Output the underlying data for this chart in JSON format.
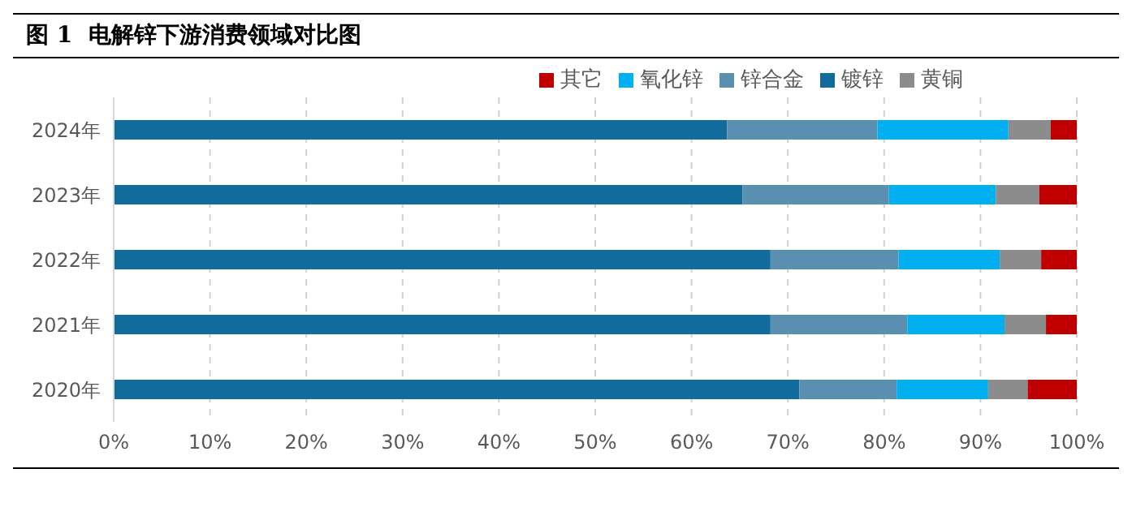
{
  "chart_data": {
    "type": "bar",
    "orientation": "horizontal",
    "stacked": true,
    "title": "图 1  电解锌下游消费领域对比图",
    "categories": [
      "2024年",
      "2023年",
      "2022年",
      "2021年",
      "2020年"
    ],
    "series": [
      {
        "name": "镀锌",
        "color": "#136a9c",
        "values": [
          63.7,
          65.3,
          68.2,
          68.2,
          71.2
        ]
      },
      {
        "name": "锌合金",
        "color": "#5b91b0",
        "values": [
          15.6,
          15.2,
          13.3,
          14.2,
          10.1
        ]
      },
      {
        "name": "氧化锌",
        "color": "#00b0f0",
        "values": [
          13.6,
          11.1,
          10.5,
          10.1,
          9.5
        ]
      },
      {
        "name": "黄铜",
        "color": "#8c8c8c",
        "values": [
          4.4,
          4.5,
          4.3,
          4.3,
          4.1
        ]
      },
      {
        "name": "其它",
        "color": "#c00000",
        "values": [
          2.7,
          3.9,
          3.7,
          3.2,
          5.1
        ]
      }
    ],
    "xlim": [
      0,
      100
    ],
    "xticks": [
      {
        "value": 0,
        "label": "0%"
      },
      {
        "value": 10,
        "label": "10%"
      },
      {
        "value": 20,
        "label": "20%"
      },
      {
        "value": 30,
        "label": "30%"
      },
      {
        "value": 40,
        "label": "40%"
      },
      {
        "value": 50,
        "label": "50%"
      },
      {
        "value": 60,
        "label": "60%"
      },
      {
        "value": 70,
        "label": "70%"
      },
      {
        "value": 80,
        "label": "80%"
      },
      {
        "value": 90,
        "label": "90%"
      },
      {
        "value": 100,
        "label": "100%"
      }
    ],
    "grid": "x",
    "legend": "top right"
  }
}
